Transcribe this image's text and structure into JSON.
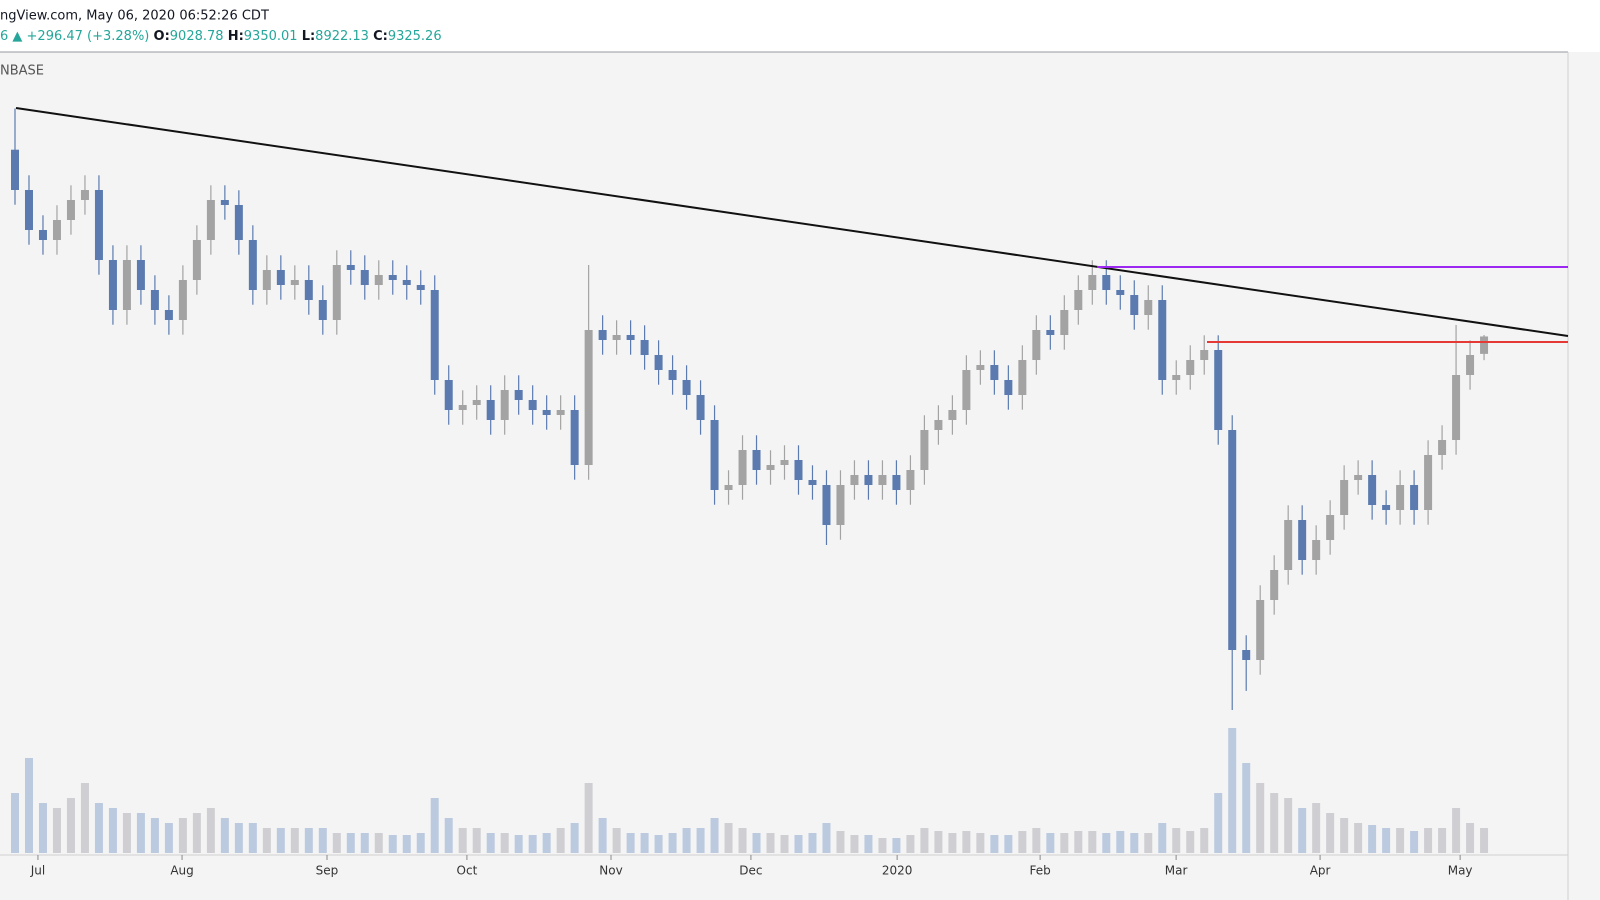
{
  "header": {
    "source": "ngView.com, May 06, 2020 06:52:26 CDT",
    "change": "6 ▲ +296.47 (+3.28%)",
    "ohlc_labels": [
      "O:",
      "H:",
      "L:",
      "C:"
    ]
  },
  "chart_data": {
    "type": "candlestick",
    "exchange": "NBASE",
    "open": [
      12500,
      11815,
      11135,
      10965,
      11305,
      11645,
      11815,
      10625,
      9775,
      10625,
      10115,
      9775,
      9605,
      10285,
      10965,
      11645,
      11560,
      10965,
      10115,
      10455,
      10200,
      10285,
      9945,
      9605,
      10540,
      10455,
      10200,
      10370,
      10285,
      10200,
      10115,
      8585,
      8075,
      8160,
      8245,
      7905,
      8415,
      8245,
      8075,
      7990,
      8075,
      7140,
      9435,
      9265,
      9350,
      9265,
      9010,
      8755,
      8585,
      8330,
      7905,
      6715,
      6800,
      7395,
      7055,
      7140,
      7225,
      6885,
      6800,
      6120,
      6800,
      6970,
      6800,
      6970,
      6715,
      7055,
      7735,
      7905,
      8075,
      8755,
      8840,
      8585,
      8330,
      8925,
      9435,
      9350,
      9775,
      10115,
      10370,
      10115,
      10030,
      9690,
      9945,
      8585,
      8670,
      8925,
      9095,
      7735,
      3995,
      3825,
      4845,
      5355,
      6205,
      5525,
      5865,
      6290,
      6885,
      6970,
      6460,
      6375,
      6800,
      6375,
      7310,
      7565,
      8670,
      9028.78
    ],
    "high": [
      13200,
      12065,
      11385,
      11555,
      11895,
      12065,
      12065,
      10875,
      10875,
      10875,
      10365,
      10025,
      10535,
      11215,
      11895,
      11895,
      11810,
      11215,
      10705,
      10705,
      10535,
      10535,
      10195,
      10790,
      10790,
      10705,
      10620,
      10620,
      10535,
      10450,
      10365,
      8835,
      8410,
      8495,
      8495,
      8665,
      8665,
      8495,
      8325,
      8325,
      8325,
      10540,
      9685,
      9600,
      9600,
      9515,
      9260,
      9005,
      8835,
      8580,
      8155,
      7050,
      7645,
      7645,
      7390,
      7475,
      7475,
      7135,
      7050,
      7050,
      7220,
      7220,
      7220,
      7220,
      7305,
      7985,
      8155,
      8325,
      9005,
      9090,
      9090,
      8835,
      9175,
      9685,
      9685,
      10025,
      10365,
      10620,
      10620,
      10365,
      10280,
      10195,
      10195,
      8920,
      9175,
      9345,
      9345,
      7985,
      4245,
      5095,
      5605,
      6455,
      6455,
      6115,
      6540,
      7135,
      7220,
      7220,
      6710,
      7050,
      7050,
      7560,
      7815,
      9520,
      9260,
      9350.01
    ],
    "low": [
      11565,
      10885,
      10715,
      10715,
      11055,
      11395,
      10375,
      9525,
      9525,
      9865,
      9525,
      9355,
      9355,
      10035,
      10715,
      11310,
      10715,
      9865,
      9865,
      9950,
      9950,
      9695,
      9355,
      9355,
      10205,
      9950,
      9950,
      10035,
      9950,
      9865,
      8335,
      7825,
      7825,
      7910,
      7655,
      7655,
      7995,
      7825,
      7740,
      7740,
      6890,
      6890,
      9015,
      9015,
      9015,
      8760,
      8505,
      8335,
      8080,
      7655,
      6465,
      6465,
      6550,
      6805,
      6805,
      6890,
      6635,
      6550,
      5780,
      5870,
      6550,
      6550,
      6550,
      6465,
      6465,
      6805,
      7485,
      7655,
      7825,
      8505,
      8335,
      8080,
      8080,
      8675,
      9100,
      9100,
      9525,
      9865,
      9865,
      9780,
      9440,
      9440,
      8335,
      8335,
      8420,
      8675,
      7485,
      2975,
      3300,
      3575,
      4595,
      5105,
      5275,
      5275,
      5615,
      6040,
      6635,
      6210,
      6125,
      6125,
      6125,
      6125,
      7060,
      7315,
      8420,
      8922.13
    ],
    "close": [
      11815,
      11135,
      10965,
      11305,
      11645,
      11815,
      10625,
      9775,
      10625,
      10115,
      9775,
      9605,
      10285,
      10965,
      11645,
      11560,
      10965,
      10115,
      10455,
      10200,
      10285,
      9945,
      9605,
      10540,
      10455,
      10200,
      10370,
      10285,
      10200,
      10115,
      8585,
      8075,
      8160,
      8245,
      7905,
      8415,
      8245,
      8075,
      7990,
      8075,
      7140,
      9435,
      9265,
      9350,
      9265,
      9010,
      8755,
      8585,
      8330,
      7905,
      6715,
      6800,
      7395,
      7055,
      7140,
      7225,
      6885,
      6800,
      6120,
      6800,
      6970,
      6800,
      6970,
      6715,
      7055,
      7735,
      7905,
      8075,
      8755,
      8840,
      8585,
      8330,
      8925,
      9435,
      9350,
      9775,
      10115,
      10370,
      10115,
      10030,
      9690,
      9945,
      8585,
      8670,
      8925,
      9095,
      7735,
      3995,
      3825,
      4845,
      5355,
      6205,
      5525,
      5865,
      6290,
      6885,
      6970,
      6460,
      6375,
      6800,
      6375,
      7310,
      7565,
      8670,
      9010,
      9325.26
    ],
    "volume": [
      60,
      95,
      50,
      45,
      55,
      70,
      50,
      45,
      40,
      40,
      35,
      30,
      35,
      40,
      45,
      35,
      30,
      30,
      25,
      25,
      25,
      25,
      25,
      20,
      20,
      20,
      20,
      18,
      18,
      20,
      55,
      35,
      25,
      25,
      20,
      20,
      18,
      18,
      20,
      25,
      30,
      70,
      35,
      25,
      20,
      20,
      18,
      20,
      25,
      25,
      35,
      30,
      25,
      20,
      20,
      18,
      18,
      20,
      30,
      22,
      18,
      18,
      15,
      15,
      18,
      25,
      22,
      20,
      22,
      20,
      18,
      18,
      22,
      25,
      20,
      20,
      22,
      22,
      20,
      22,
      20,
      20,
      30,
      25,
      22,
      25,
      60,
      125,
      90,
      70,
      60,
      55,
      45,
      50,
      40,
      35,
      30,
      28,
      25,
      25,
      22,
      25,
      25,
      45,
      30,
      25
    ],
    "up_color": "#a3a3a3",
    "down_color": "#5b7bb0",
    "up_volume_color": "#cfcfd3",
    "down_volume_color": "#bccae0",
    "ylim": [
      510,
      14144
    ],
    "vlim": [
      0,
      140
    ],
    "xlim": [
      -1.072,
      111
    ],
    "xticks": [
      {
        "value": 1.64,
        "label": "Jul"
      },
      {
        "value": 11.94,
        "label": "Aug"
      },
      {
        "value": 22.3,
        "label": "Sep"
      },
      {
        "value": 32.3,
        "label": "Oct"
      },
      {
        "value": 42.6,
        "label": "Nov"
      },
      {
        "value": 52.6,
        "label": "Dec"
      },
      {
        "value": 63.05,
        "label": "2020"
      },
      {
        "value": 73.27,
        "label": "Feb"
      },
      {
        "value": 82.99,
        "label": "Mar"
      },
      {
        "value": 93.28,
        "label": "Apr"
      },
      {
        "value": 103.29,
        "label": "May"
      }
    ]
  }
}
